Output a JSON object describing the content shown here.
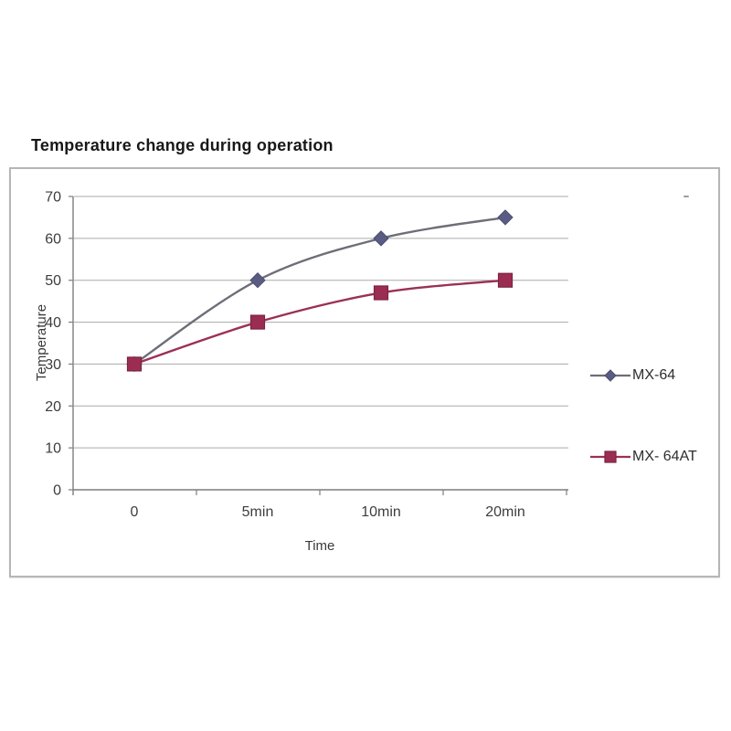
{
  "header": {
    "title": "Temperature change during operation"
  },
  "chart_data": {
    "type": "line",
    "title": "Temperature change during operation",
    "xlabel": "Time",
    "ylabel": "Temperature",
    "categories": [
      "0",
      "5min",
      "10min",
      "20min"
    ],
    "yticks": [
      0,
      10,
      20,
      30,
      40,
      50,
      60,
      70
    ],
    "ylim": [
      0,
      70
    ],
    "grid": true,
    "legend_position": "right",
    "series": [
      {
        "name": "MX-64",
        "marker": "diamond",
        "values": [
          30,
          50,
          60,
          65
        ],
        "color": "#5a5c84",
        "marker_stroke": "#4c4e70",
        "line_color": "#6e6e78"
      },
      {
        "name": "MX- 64AT",
        "marker": "square",
        "values": [
          30,
          40,
          47,
          50
        ],
        "color": "#9b2d52",
        "marker_stroke": "#7c2342",
        "line_color": "#9b3055"
      }
    ],
    "colors": {
      "grid": "#aaaaaa",
      "axis": "#7d7d7d",
      "tick_text": "#3d3d3d",
      "frame_border": "#b6b6b9",
      "background": "#ffffff"
    }
  }
}
